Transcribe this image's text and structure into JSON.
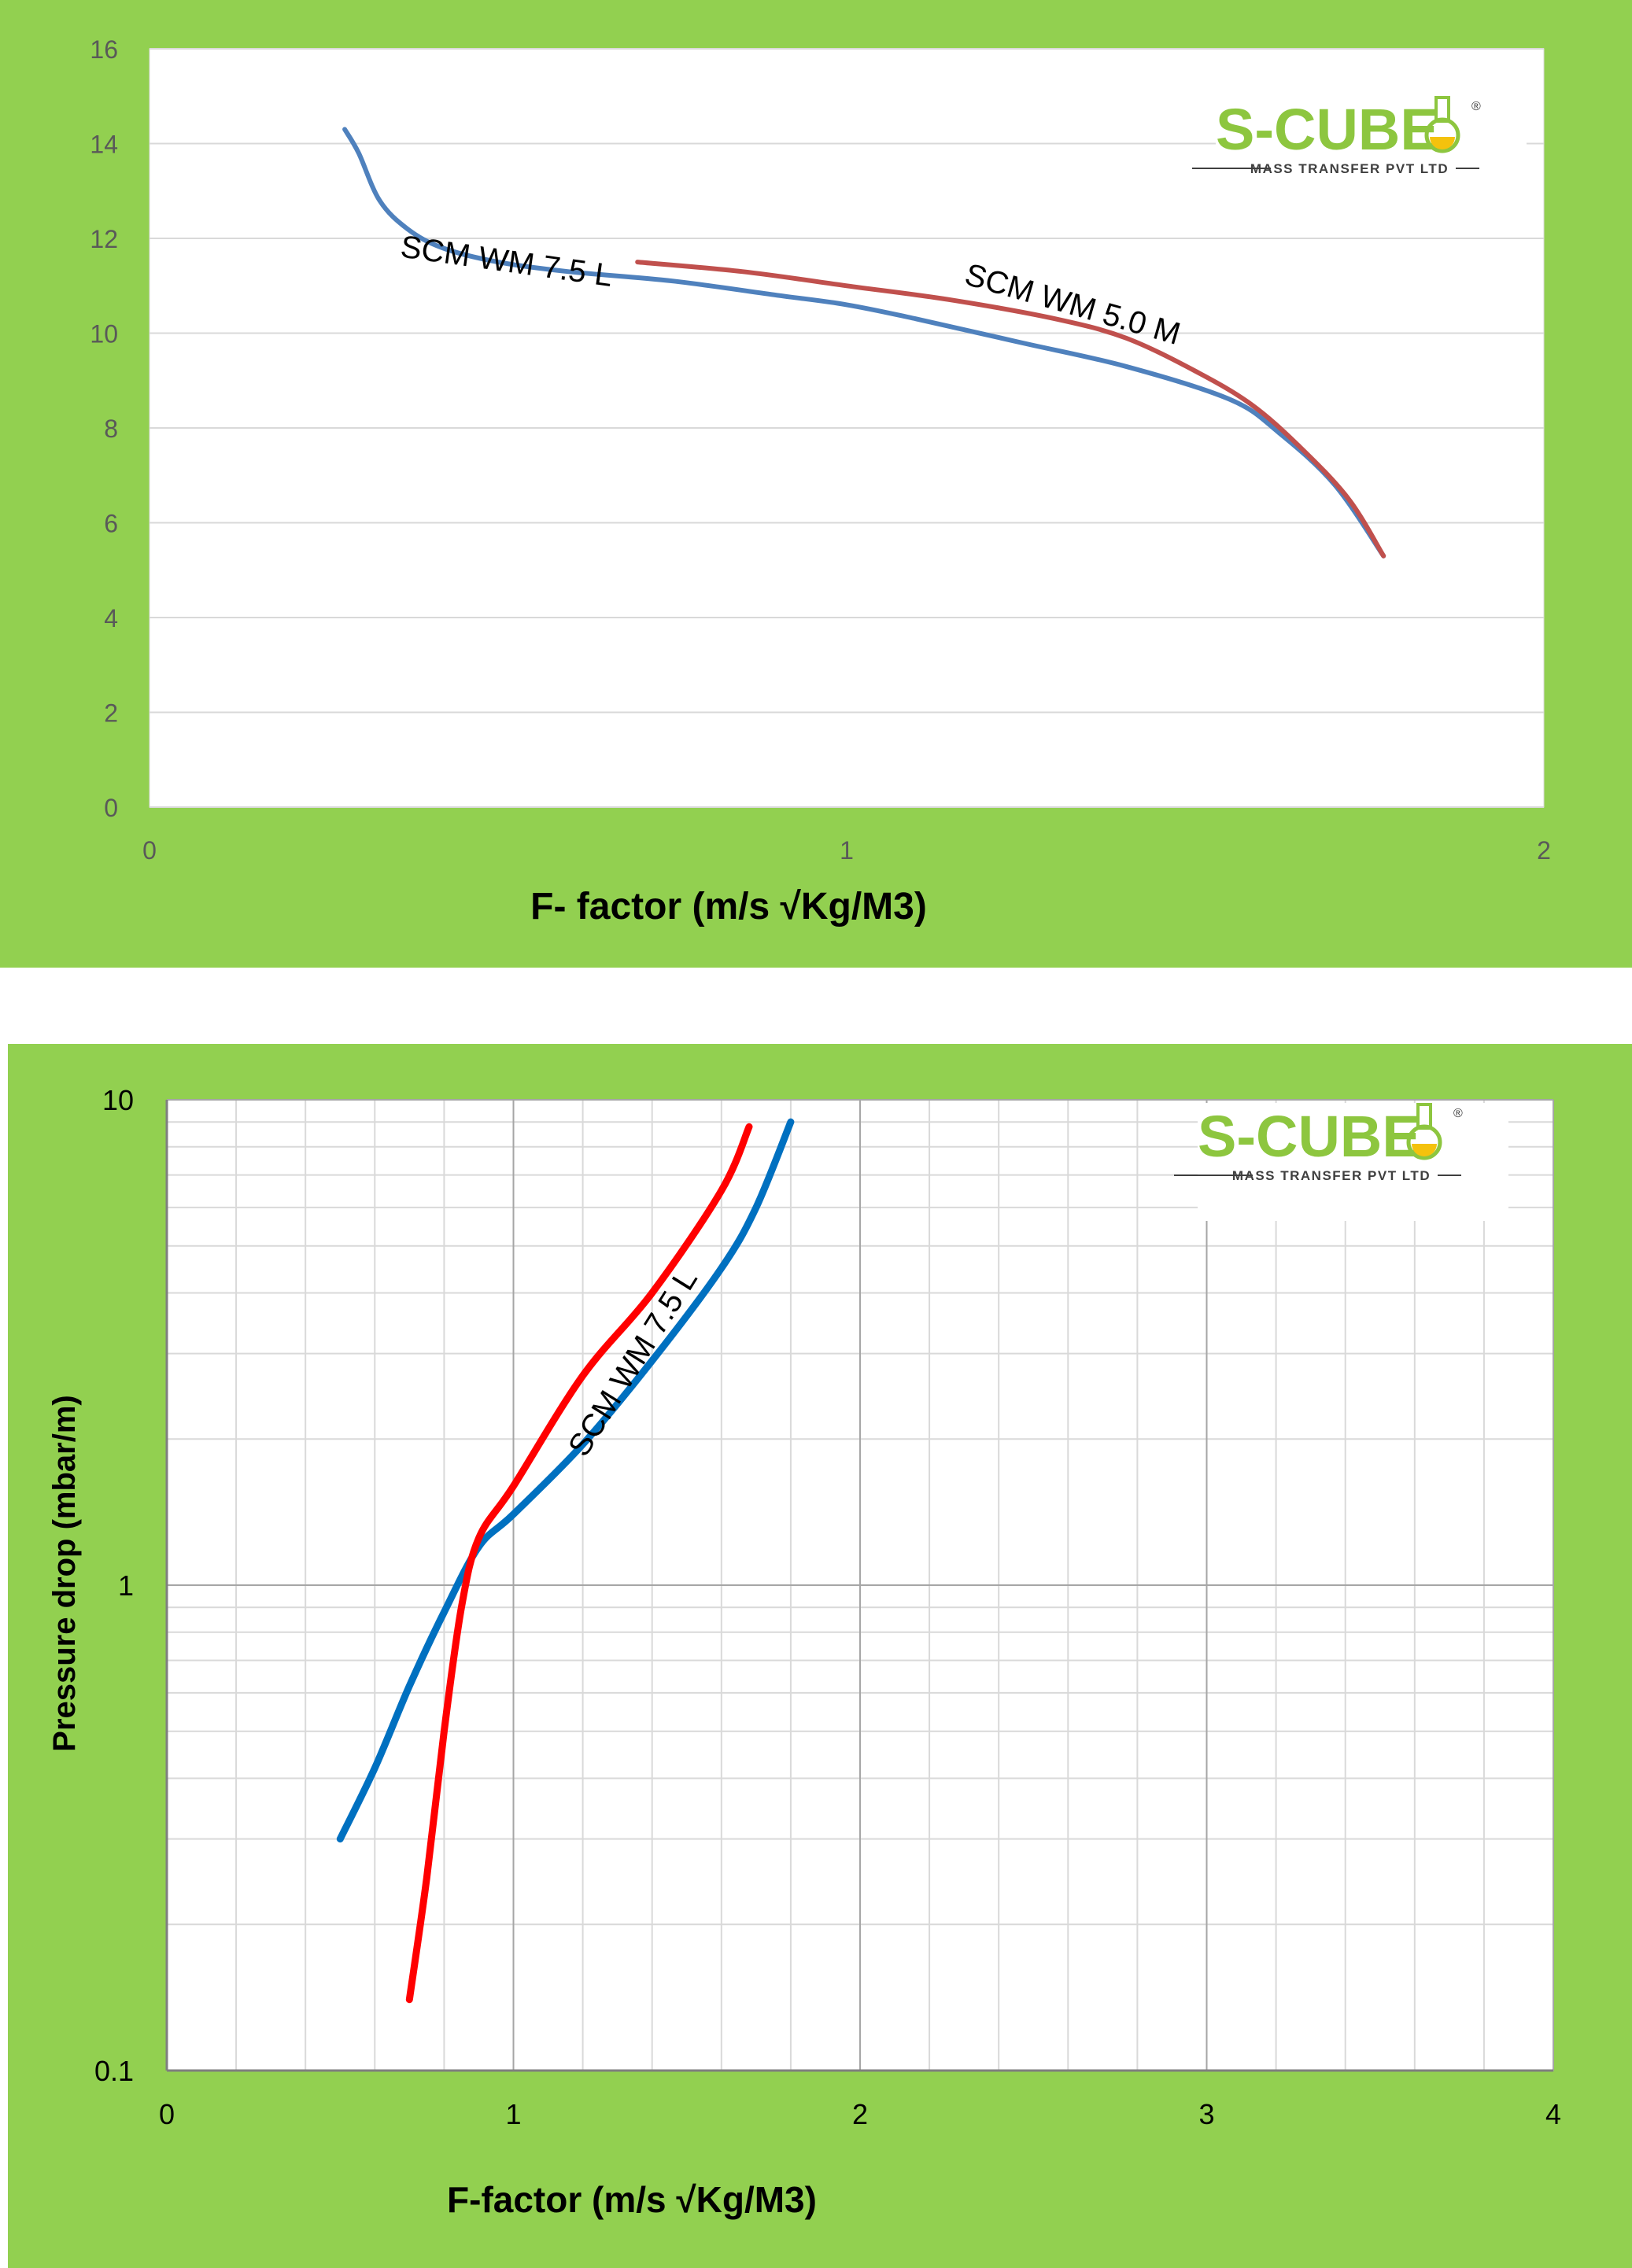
{
  "colors": {
    "panel_bg": "#92d050",
    "plot_bg": "#ffffff",
    "grid_light": "#d9d9d9",
    "grid_dark": "#a6a6a6",
    "tick_text": "#595959",
    "series_blue": "#4f81bd",
    "series_red": "#c0504d",
    "series_blue_bright": "#0070c0",
    "series_red_bright": "#ff0000",
    "logo_green": "#8dc63f",
    "logo_dark": "#3f3f3f",
    "logo_yellow": "#f4c20d"
  },
  "logo": {
    "name": "S-CUBE",
    "registered": "®",
    "tagline": "MASS TRANSFER PVT LTD"
  },
  "chart_data": [
    {
      "type": "line",
      "title": "",
      "xlabel": "F- factor (m/s √Kg/M3)",
      "ylabel": "",
      "xlim": [
        0,
        2
      ],
      "ylim": [
        0,
        16
      ],
      "x_ticks": [
        "0",
        "1",
        "2"
      ],
      "y_ticks": [
        "0",
        "2",
        "4",
        "6",
        "8",
        "10",
        "12",
        "14",
        "16"
      ],
      "grid": "horizontal",
      "legend": "none",
      "series": [
        {
          "name": "SCM WM 7.5 L",
          "color": "#4f81bd",
          "x": [
            0.28,
            0.3,
            0.33,
            0.37,
            0.42,
            0.5,
            0.6,
            0.75,
            0.9,
            1.0,
            1.1,
            1.25,
            1.4,
            1.55,
            1.62,
            1.7,
            1.77
          ],
          "y": [
            14.3,
            13.8,
            12.8,
            12.2,
            11.8,
            11.5,
            11.3,
            11.1,
            10.8,
            10.6,
            10.3,
            9.8,
            9.3,
            8.6,
            7.9,
            6.8,
            5.3
          ]
        },
        {
          "name": "SCM WM 5.0 M",
          "color": "#c0504d",
          "x": [
            0.7,
            0.85,
            1.0,
            1.15,
            1.3,
            1.4,
            1.5,
            1.58,
            1.65,
            1.72,
            1.77
          ],
          "y": [
            11.5,
            11.3,
            11.0,
            10.7,
            10.3,
            9.9,
            9.2,
            8.5,
            7.6,
            6.5,
            5.3
          ]
        }
      ],
      "annotations": [
        {
          "text": "SCM WM 7.5 L",
          "x": 0.51,
          "y": 11.3,
          "angle": 8
        },
        {
          "text": "SCM WM 5.0 M",
          "x": 1.32,
          "y": 10.4,
          "angle": 16
        }
      ]
    },
    {
      "type": "line",
      "title": "",
      "xlabel": "F-factor (m/s √Kg/M3)",
      "ylabel": "Pressure drop (mbar/m)",
      "xlim": [
        0,
        4
      ],
      "ylim": [
        0.1,
        10
      ],
      "yscale": "log",
      "x_ticks": [
        "0",
        "1",
        "2",
        "3",
        "4"
      ],
      "y_ticks": [
        "0.1",
        "1",
        "10"
      ],
      "grid": "both",
      "legend": "none",
      "series": [
        {
          "name": "SCM WM 7.5 L",
          "color": "#0070c0",
          "x": [
            0.5,
            0.6,
            0.7,
            0.8,
            0.9,
            1.0,
            1.2,
            1.4,
            1.6,
            1.7,
            1.8
          ],
          "y": [
            0.3,
            0.42,
            0.62,
            0.88,
            1.2,
            1.4,
            1.95,
            2.9,
            4.5,
            6.0,
            9.0
          ]
        },
        {
          "name": "",
          "color": "#ff0000",
          "x": [
            0.7,
            0.75,
            0.8,
            0.85,
            0.9,
            1.0,
            1.2,
            1.4,
            1.6,
            1.68
          ],
          "y": [
            0.14,
            0.25,
            0.5,
            0.9,
            1.25,
            1.6,
            2.7,
            4.0,
            6.5,
            8.8
          ]
        }
      ],
      "annotations": [
        {
          "text": "SCM WM 7.5 L",
          "x": 1.37,
          "y": 2.8,
          "angle": -58
        }
      ]
    }
  ]
}
